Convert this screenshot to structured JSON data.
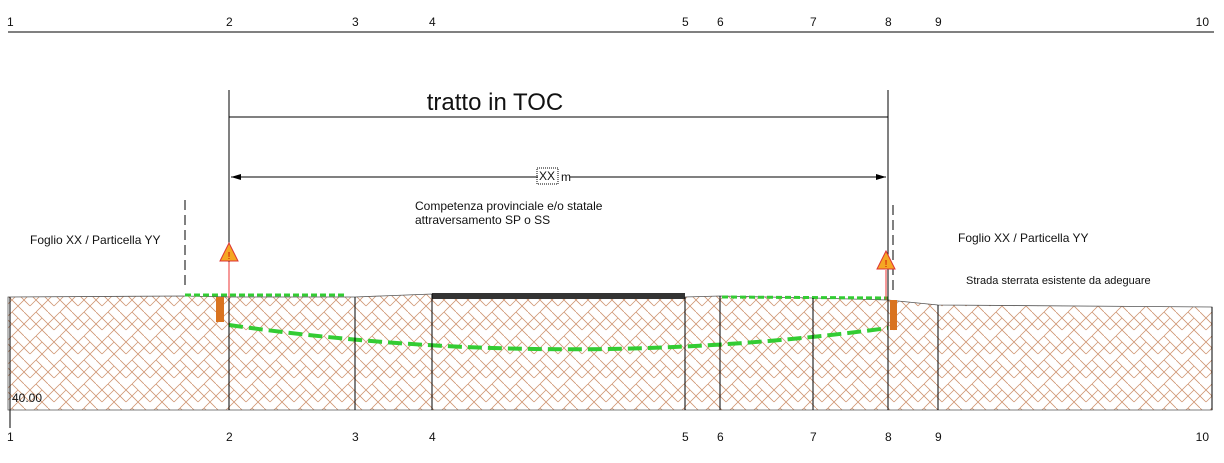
{
  "stations_top": [
    "1",
    "2",
    "3",
    "4",
    "5",
    "6",
    "7",
    "8",
    "9",
    "10"
  ],
  "stations_bottom": [
    "1",
    "2",
    "3",
    "4",
    "5",
    "6",
    "7",
    "8",
    "9",
    "10"
  ],
  "title": "tratto in TOC",
  "length": {
    "value": "XX",
    "unit": "m"
  },
  "competence": {
    "line1": "Competenza provinciale e/o statale",
    "line2": "attraversamento SP o SS"
  },
  "parcel_left": "Foglio XX / Particella YY",
  "parcel_right": "Foglio XX / Particella YY",
  "road_note": "Strada sterrata esistente da adeguare",
  "elevation": "40.00"
}
